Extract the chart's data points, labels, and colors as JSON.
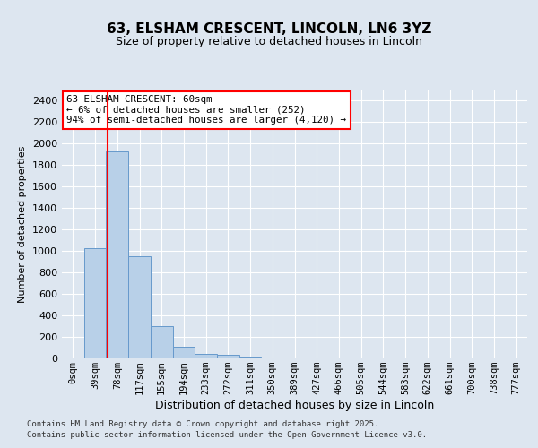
{
  "title1": "63, ELSHAM CRESCENT, LINCOLN, LN6 3YZ",
  "title2": "Size of property relative to detached houses in Lincoln",
  "xlabel": "Distribution of detached houses by size in Lincoln",
  "ylabel": "Number of detached properties",
  "categories": [
    "0sqm",
    "39sqm",
    "78sqm",
    "117sqm",
    "155sqm",
    "194sqm",
    "233sqm",
    "272sqm",
    "311sqm",
    "350sqm",
    "389sqm",
    "427sqm",
    "466sqm",
    "505sqm",
    "544sqm",
    "583sqm",
    "622sqm",
    "661sqm",
    "700sqm",
    "738sqm",
    "777sqm"
  ],
  "values": [
    5,
    1025,
    1925,
    950,
    300,
    110,
    45,
    30,
    15,
    2,
    0,
    0,
    0,
    0,
    0,
    0,
    0,
    0,
    0,
    0,
    0
  ],
  "bar_color": "#b8d0e8",
  "bar_edge_color": "#6699cc",
  "ylim": [
    0,
    2500
  ],
  "yticks": [
    0,
    200,
    400,
    600,
    800,
    1000,
    1200,
    1400,
    1600,
    1800,
    2000,
    2200,
    2400
  ],
  "vline_x": 1.55,
  "vline_color": "red",
  "annotation_text": "63 ELSHAM CRESCENT: 60sqm\n← 6% of detached houses are smaller (252)\n94% of semi-detached houses are larger (4,120) →",
  "annotation_box_color": "white",
  "annotation_box_edge": "red",
  "footer1": "Contains HM Land Registry data © Crown copyright and database right 2025.",
  "footer2": "Contains public sector information licensed under the Open Government Licence v3.0.",
  "bg_color": "#dde6f0",
  "plot_bg_color": "#dde6f0",
  "grid_color": "white",
  "title_fontsize": 11,
  "subtitle_fontsize": 9,
  "ylabel_fontsize": 8,
  "xlabel_fontsize": 9,
  "tick_fontsize": 7.5,
  "ytick_fontsize": 8,
  "footer_fontsize": 6.5
}
